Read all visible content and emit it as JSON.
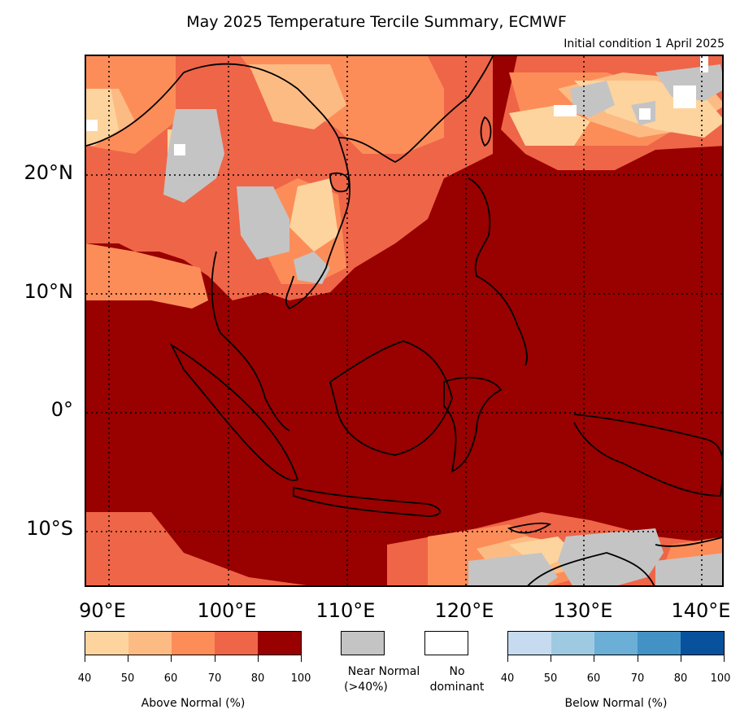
{
  "header": {
    "title": "May 2025 Temperature Tercile Summary, ECMWF",
    "subtitle": "Initial condition 1 April 2025"
  },
  "axes": {
    "lat_labels": [
      "20°N",
      "10°N",
      "0°",
      "10°S"
    ],
    "lon_labels": [
      "90°E",
      "100°E",
      "110°E",
      "120°E",
      "130°E",
      "140°E"
    ]
  },
  "colors": {
    "ocean_high": "#990000",
    "near_normal": "#c4c4c4",
    "coastline": "#000000"
  },
  "legend": {
    "above": {
      "title": "Above Normal (%)",
      "ticks": [
        "40",
        "50",
        "60",
        "70",
        "80",
        "100"
      ],
      "colors": [
        "#fdd49e",
        "#fdbb84",
        "#fc8d59",
        "#ef6548",
        "#990000"
      ]
    },
    "near_normal": {
      "label_line1": "Near Normal",
      "label_line2": "(>40%)",
      "color": "#c4c4c4"
    },
    "no_dominant": {
      "label_line1": "No",
      "label_line2": "dominant",
      "color": "#ffffff"
    },
    "below": {
      "title": "Below Normal (%)",
      "ticks": [
        "40",
        "50",
        "60",
        "70",
        "80",
        "100"
      ],
      "colors": [
        "#c6dbef",
        "#9ecae1",
        "#6baed6",
        "#4292c6",
        "#08519c"
      ]
    }
  }
}
